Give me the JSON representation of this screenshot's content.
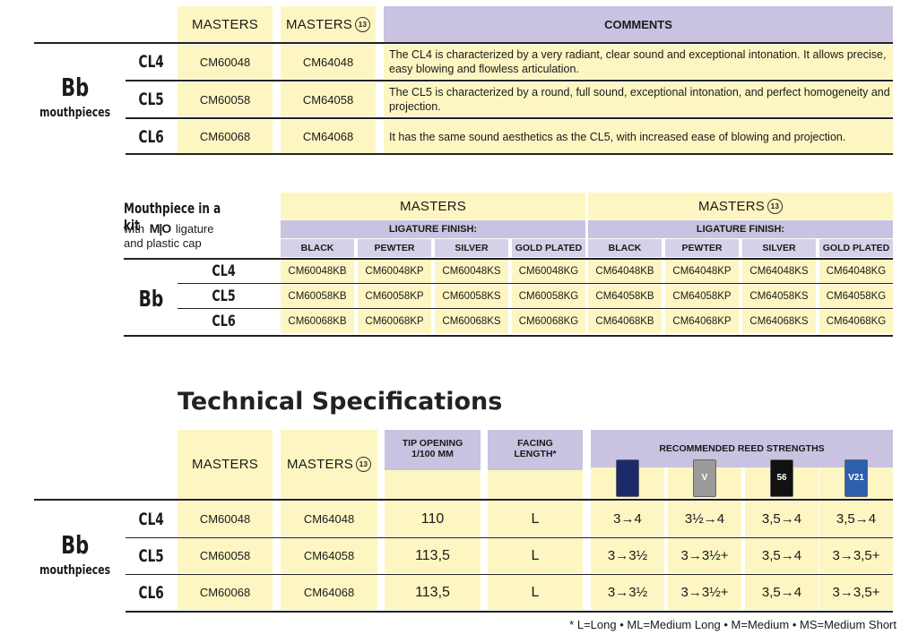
{
  "table1": {
    "header": {
      "masters": "MASTERS",
      "masters_13": "MASTERS",
      "badge": "13",
      "comments": "COMMENTS"
    },
    "group": {
      "title": "Bb",
      "subtitle": "mouthpieces"
    },
    "rows": [
      {
        "model": "CL4",
        "masters": "CM60048",
        "masters_13": "CM64048",
        "comment": "The CL4 is characterized by a very radiant, clear sound and exceptional intonation. It allows precise, easy blowing and flowless articulation."
      },
      {
        "model": "CL5",
        "masters": "CM60058",
        "masters_13": "CM64058",
        "comment": "The CL5 is characterized by a round, full sound, exceptional intonation, and perfect homogeneity and projection."
      },
      {
        "model": "CL6",
        "masters": "CM60068",
        "masters_13": "CM64068",
        "comment": "It has the same sound aesthetics as the CL5, with increased ease of blowing and projection."
      }
    ]
  },
  "table2": {
    "kit_title": "Mouthpiece in a kit",
    "kit_with": "with",
    "kit_brand": "M|O",
    "kit_ligature": "ligature",
    "kit_cap": "and plastic cap",
    "group_title": "Bb",
    "masters": "MASTERS",
    "masters_13": "MASTERS",
    "badge": "13",
    "ligature_finish": "LIGATURE FINISH:",
    "finishes": [
      "BLACK",
      "PEWTER",
      "SILVER",
      "GOLD PLATED",
      "BLACK",
      "PEWTER",
      "SILVER",
      "GOLD PLATED"
    ],
    "rows": [
      {
        "model": "CL4",
        "codes": [
          "CM60048KB",
          "CM60048KP",
          "CM60048KS",
          "CM60048KG",
          "CM64048KB",
          "CM64048KP",
          "CM64048KS",
          "CM64048KG"
        ]
      },
      {
        "model": "CL5",
        "codes": [
          "CM60058KB",
          "CM60058KP",
          "CM60058KS",
          "CM60058KG",
          "CM64058KB",
          "CM64058KP",
          "CM64058KS",
          "CM64058KG"
        ]
      },
      {
        "model": "CL6",
        "codes": [
          "CM60068KB",
          "CM60068KP",
          "CM60068KS",
          "CM60068KG",
          "CM64068KB",
          "CM64068KP",
          "CM64068KS",
          "CM64068KG"
        ]
      }
    ]
  },
  "specs": {
    "title": "Technical Specifications",
    "masters": "MASTERS",
    "masters_13": "MASTERS",
    "badge": "13",
    "tip_opening_l1": "TIP OPENING",
    "tip_opening_l2": "1/100 MM",
    "facing_l1": "FACING",
    "facing_l2": "LENGTH*",
    "reeds_header": "RECOMMENDED REED STRENGTHS",
    "reed_icons": [
      {
        "name": "traditional-reed-box-icon",
        "color": "#1c2a6b",
        "label": ""
      },
      {
        "name": "v12-reed-box-icon",
        "color": "#9a9a9a",
        "label": "V"
      },
      {
        "name": "56-rue-lepic-reed-box-icon",
        "color": "#111111",
        "label": "56"
      },
      {
        "name": "v21-reed-box-icon",
        "color": "#2c5fae",
        "label": "V21"
      }
    ],
    "group": {
      "title": "Bb",
      "subtitle": "mouthpieces"
    },
    "rows": [
      {
        "model": "CL4",
        "masters": "CM60048",
        "masters_13": "CM64048",
        "tip": "110",
        "facing": "L",
        "reeds": [
          "3→4",
          "3½→4",
          "3,5→4",
          "3,5→4"
        ]
      },
      {
        "model": "CL5",
        "masters": "CM60058",
        "masters_13": "CM64058",
        "tip": "113,5",
        "facing": "L",
        "reeds": [
          "3→3½",
          "3→3½+",
          "3,5→4",
          "3→3,5+"
        ]
      },
      {
        "model": "CL6",
        "masters": "CM60068",
        "masters_13": "CM64068",
        "tip": "113,5",
        "facing": "L",
        "reeds": [
          "3→3½",
          "3→3½+",
          "3,5→4",
          "3→3,5+"
        ]
      }
    ],
    "footnote": "* L=Long • ML=Medium Long • M=Medium • MS=Medium Short"
  }
}
